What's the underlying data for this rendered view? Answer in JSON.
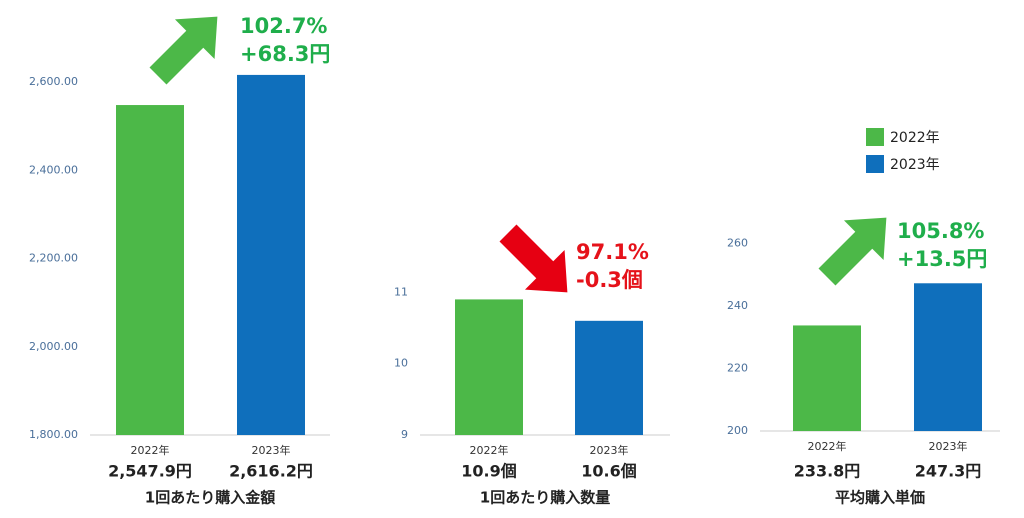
{
  "chart_data": [
    {
      "type": "bar",
      "title": "1回あたり購入金額",
      "categories": [
        "2022年",
        "2023年"
      ],
      "values": [
        2547.9,
        2616.2
      ],
      "value_labels": [
        "2,547.9円",
        "2,616.2円"
      ],
      "colors": [
        "#4cb848",
        "#0f6fbc"
      ],
      "ylim": [
        1800,
        2650
      ],
      "yticks": [
        {
          "value": 1800,
          "label": "1,800.00"
        },
        {
          "value": 2000,
          "label": "2,000.00"
        },
        {
          "value": 2200,
          "label": "2,200.00"
        },
        {
          "value": 2400,
          "label": "2,400.00"
        },
        {
          "value": 2600,
          "label": "2,600.00"
        }
      ],
      "annotations": [
        "102.7%",
        "+68.3円"
      ],
      "annotation_color": "#1fae4b",
      "arrow": "up",
      "arrow_color": "#4cb848"
    },
    {
      "type": "bar",
      "title": "1回あたり購入数量",
      "categories": [
        "2022年",
        "2023年"
      ],
      "values": [
        10.9,
        10.6
      ],
      "value_labels": [
        "10.9個",
        "10.6個"
      ],
      "colors": [
        "#4cb848",
        "#0f6fbc"
      ],
      "ylim": [
        9,
        11.2
      ],
      "yticks": [
        9,
        10,
        11
      ],
      "annotations": [
        "97.1%",
        "-0.3個"
      ],
      "annotation_color": "#e5121a",
      "arrow": "down",
      "arrow_color": "#e60012"
    },
    {
      "type": "bar",
      "title": "平均購入単価",
      "categories": [
        "2022年",
        "2023年"
      ],
      "values": [
        233.8,
        247.3
      ],
      "value_labels": [
        "233.8円",
        "247.3円"
      ],
      "colors": [
        "#4cb848",
        "#0f6fbc"
      ],
      "ylim": [
        200,
        265
      ],
      "yticks": [
        200,
        220,
        240,
        260
      ],
      "annotations": [
        "105.8%",
        "+13.5円"
      ],
      "annotation_color": "#1fae4b",
      "arrow": "up",
      "arrow_color": "#4cb848",
      "legend": [
        {
          "name": "2022年",
          "color": "#4cb848"
        },
        {
          "name": "2023年",
          "color": "#0f6fbc"
        }
      ]
    }
  ]
}
